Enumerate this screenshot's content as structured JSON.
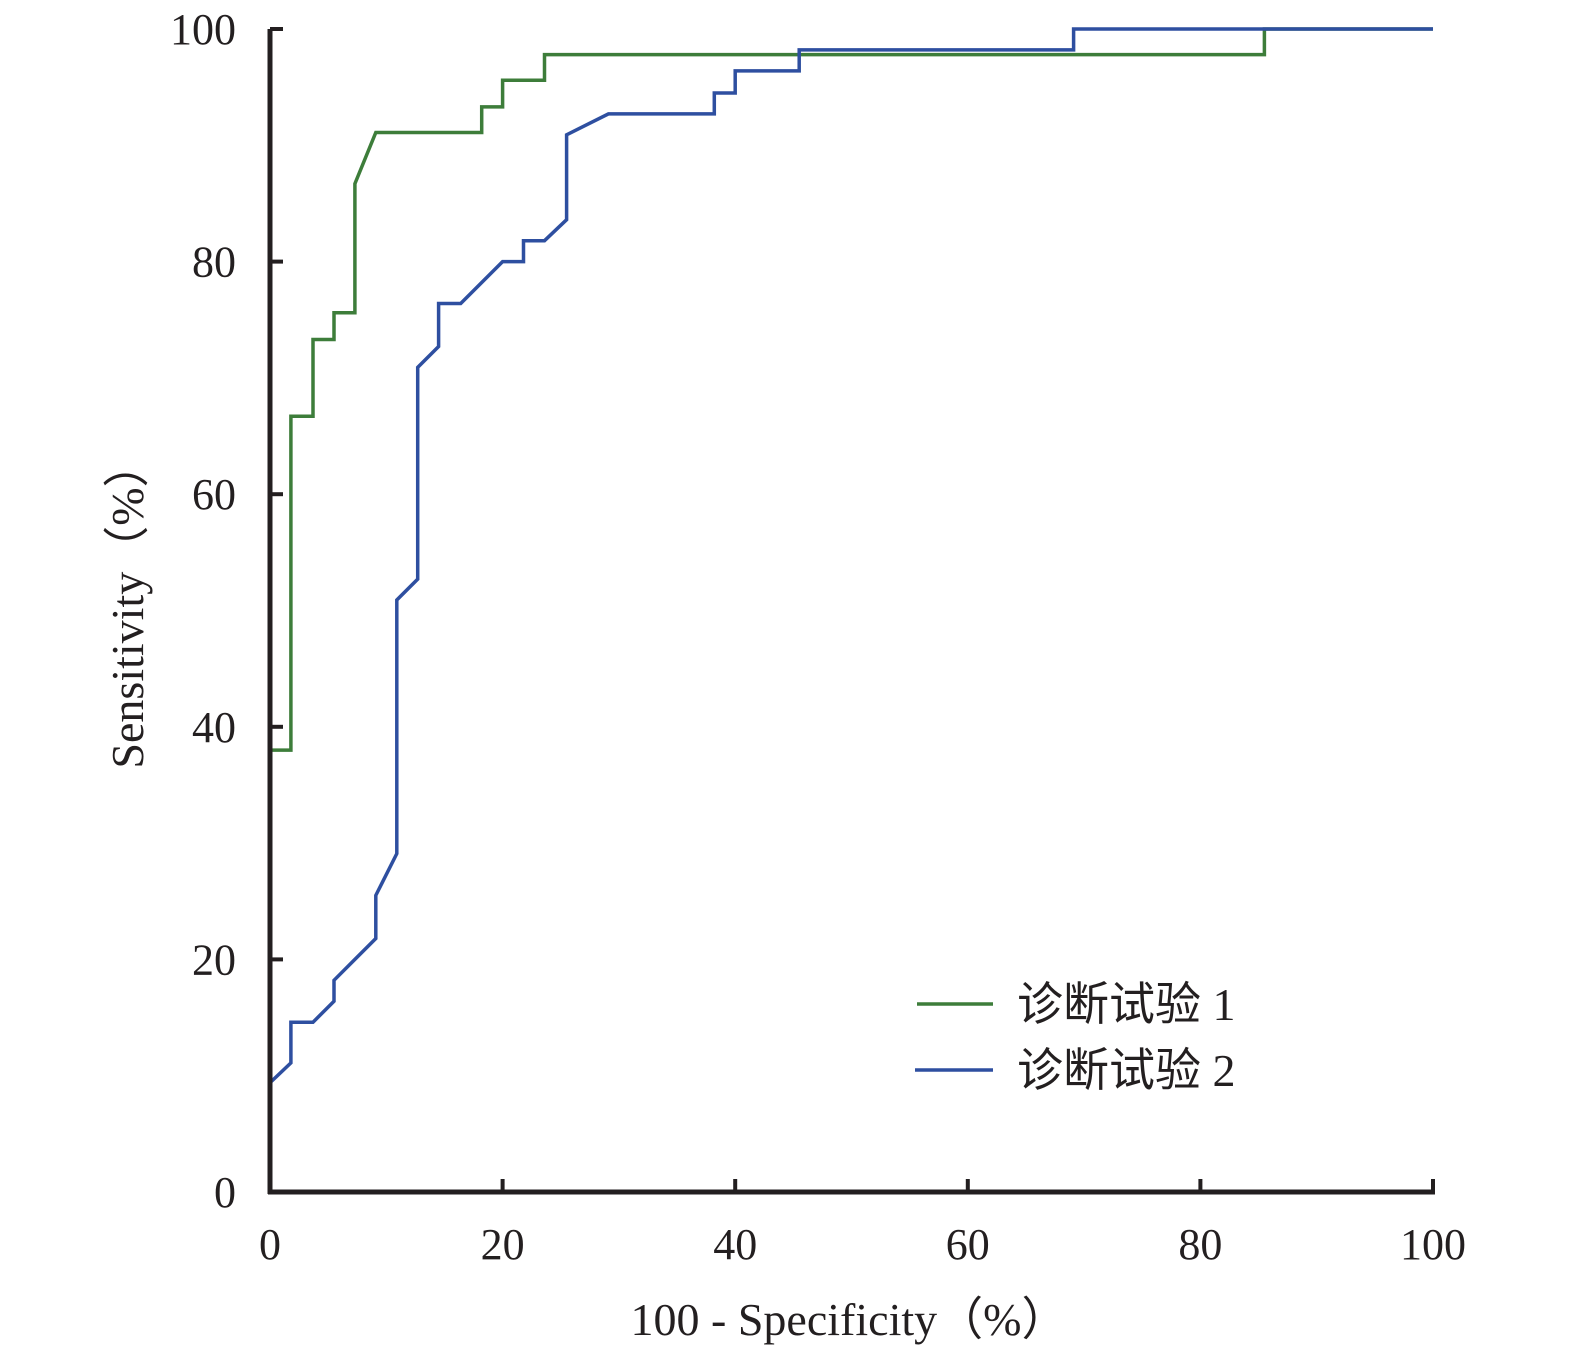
{
  "chart_data": {
    "type": "line",
    "title": "",
    "xlabel": "100 - Specificity（%）",
    "ylabel": "Sensitivity（%）",
    "xlim": [
      0,
      100
    ],
    "ylim": [
      0,
      100
    ],
    "x_ticks": [
      "0",
      "20",
      "40",
      "60",
      "80",
      "100"
    ],
    "y_ticks": [
      "0",
      "20",
      "40",
      "60",
      "80",
      "100"
    ],
    "grid": false,
    "legend_position": "bottom-right",
    "series": [
      {
        "name": "诊断试验 1",
        "color": "#3d7d3a",
        "points": [
          [
            0,
            0
          ],
          [
            0,
            38
          ],
          [
            1.8,
            38
          ],
          [
            1.8,
            66.7
          ],
          [
            3.7,
            66.7
          ],
          [
            3.7,
            73.3
          ],
          [
            5.5,
            73.3
          ],
          [
            5.5,
            75.6
          ],
          [
            7.3,
            75.6
          ],
          [
            7.3,
            86.7
          ],
          [
            9.1,
            91.1
          ],
          [
            18.2,
            91.1
          ],
          [
            18.2,
            93.3
          ],
          [
            20,
            93.3
          ],
          [
            20,
            95.6
          ],
          [
            23.6,
            95.6
          ],
          [
            23.6,
            97.8
          ],
          [
            85.5,
            97.8
          ],
          [
            85.5,
            100
          ],
          [
            100,
            100
          ]
        ]
      },
      {
        "name": "诊断试验 2",
        "color": "#2e4fa0",
        "points": [
          [
            0,
            0
          ],
          [
            0,
            9.4
          ],
          [
            1.8,
            11.1
          ],
          [
            1.8,
            14.6
          ],
          [
            3.7,
            14.6
          ],
          [
            5.5,
            16.4
          ],
          [
            5.5,
            18.2
          ],
          [
            7.3,
            20
          ],
          [
            9.1,
            21.8
          ],
          [
            9.1,
            25.5
          ],
          [
            10.9,
            29.1
          ],
          [
            10.9,
            50.9
          ],
          [
            12.7,
            52.7
          ],
          [
            12.7,
            70.9
          ],
          [
            14.5,
            72.7
          ],
          [
            14.5,
            76.4
          ],
          [
            16.4,
            76.4
          ],
          [
            20,
            80
          ],
          [
            21.8,
            80
          ],
          [
            21.8,
            81.8
          ],
          [
            23.6,
            81.8
          ],
          [
            25.5,
            83.6
          ],
          [
            25.5,
            90.9
          ],
          [
            29.1,
            92.7
          ],
          [
            38.2,
            92.7
          ],
          [
            38.2,
            94.5
          ],
          [
            40,
            94.5
          ],
          [
            40,
            96.4
          ],
          [
            45.5,
            96.4
          ],
          [
            45.5,
            98.2
          ],
          [
            69.1,
            98.2
          ],
          [
            69.1,
            100
          ],
          [
            100,
            100
          ]
        ]
      }
    ]
  }
}
